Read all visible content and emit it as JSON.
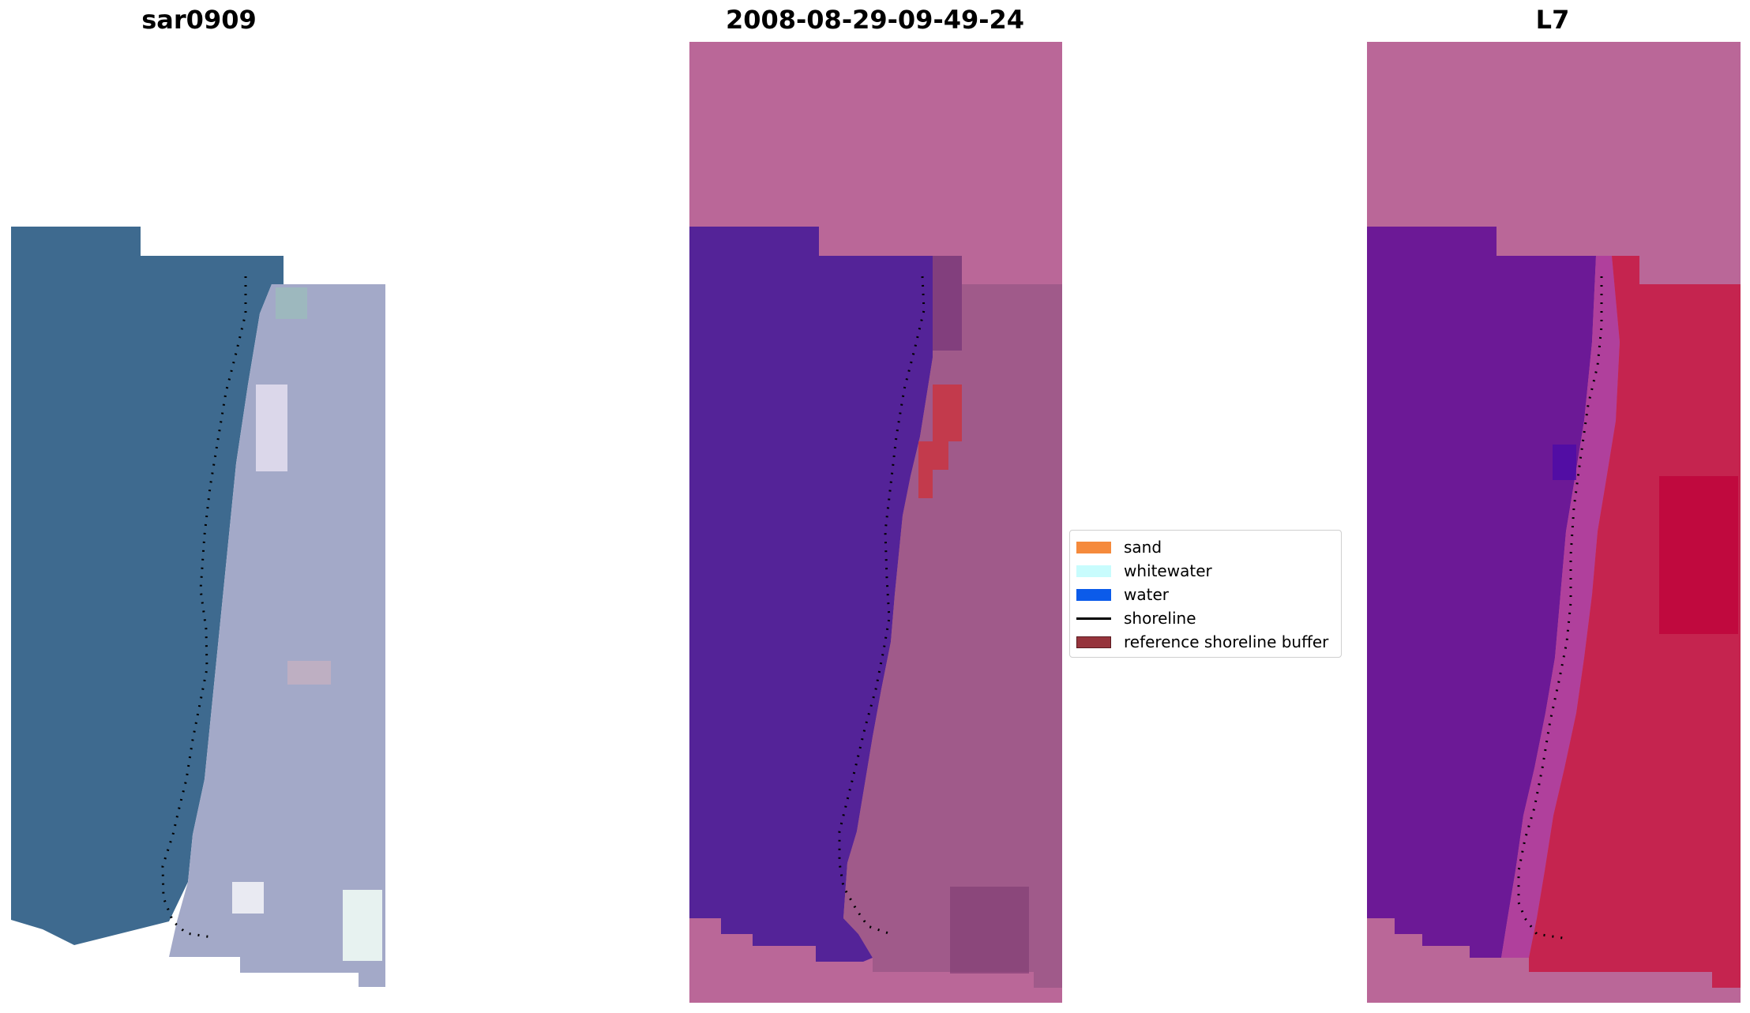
{
  "panels": [
    {
      "title": "sar0909"
    },
    {
      "title": "2008-08-29-09-49-24"
    },
    {
      "title": "L7"
    }
  ],
  "legend": {
    "items": [
      {
        "label": "sand",
        "color": "#f58a3c",
        "type": "patch"
      },
      {
        "label": "whitewater",
        "color": "#c8fcfd",
        "type": "patch"
      },
      {
        "label": "water",
        "color": "#0b5bea",
        "type": "patch"
      },
      {
        "label": "shoreline",
        "color": "#000000",
        "type": "line"
      },
      {
        "label": "reference shoreline buffer",
        "color": "#96343c",
        "type": "patch"
      }
    ]
  },
  "colors": {
    "rgb_water": "#3e6a8f",
    "rgb_land": "#a3a9c8",
    "nodata_pink": "#ba6798",
    "class_water": "#542398",
    "class_land": "#a05a8a",
    "buffer_red": "#c33a4c",
    "mndwi_water": "#6c1996",
    "mndwi_land": "#c5244f"
  }
}
